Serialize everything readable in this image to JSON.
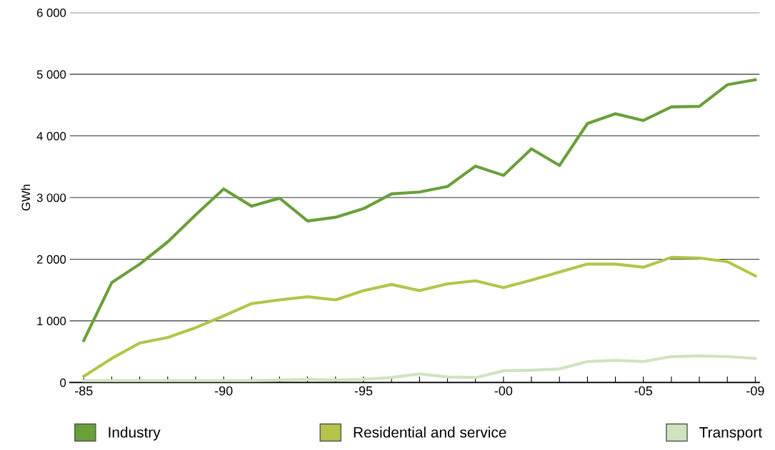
{
  "chart_data": {
    "type": "line",
    "ylabel": "GWh",
    "categories": [
      "-85",
      null,
      null,
      null,
      null,
      "-90",
      null,
      null,
      null,
      null,
      "-95",
      null,
      null,
      null,
      null,
      "-00",
      null,
      null,
      null,
      null,
      "-05",
      null,
      null,
      null,
      "-09"
    ],
    "series": [
      {
        "name": "Industry",
        "color": "#6a9f3a",
        "values": [
          680,
          1620,
          1920,
          2280,
          2720,
          3140,
          2860,
          2990,
          2620,
          2680,
          2820,
          3060,
          3090,
          3180,
          3510,
          3360,
          3790,
          3520,
          4200,
          4360,
          4250,
          4470,
          4480,
          4830,
          4910
        ]
      },
      {
        "name": "Residential and service",
        "color": "#b5c44a",
        "values": [
          100,
          390,
          640,
          730,
          890,
          1080,
          1280,
          1340,
          1390,
          1340,
          1490,
          1590,
          1490,
          1600,
          1650,
          1540,
          1660,
          1790,
          1920,
          1920,
          1870,
          2030,
          2020,
          1960,
          1730
        ]
      },
      {
        "name": "Transport",
        "color": "#cfe3c0",
        "values": [
          30,
          30,
          30,
          30,
          30,
          30,
          30,
          40,
          50,
          40,
          50,
          80,
          140,
          90,
          80,
          190,
          200,
          220,
          340,
          360,
          340,
          420,
          430,
          420,
          390
        ]
      }
    ],
    "ylim": [
      0,
      6000
    ],
    "yticks": [
      0,
      {
        "value": 1000,
        "label": "1 000"
      },
      {
        "value": 2000,
        "label": "2 000"
      },
      {
        "value": 3000,
        "label": "3 000"
      },
      {
        "value": 4000,
        "label": "4 000"
      },
      {
        "value": 5000,
        "label": "5 000"
      },
      {
        "value": 6000,
        "label": "6 000"
      }
    ],
    "grid": "y",
    "legend": "bottom",
    "marker": "none",
    "line_style": "solid"
  }
}
